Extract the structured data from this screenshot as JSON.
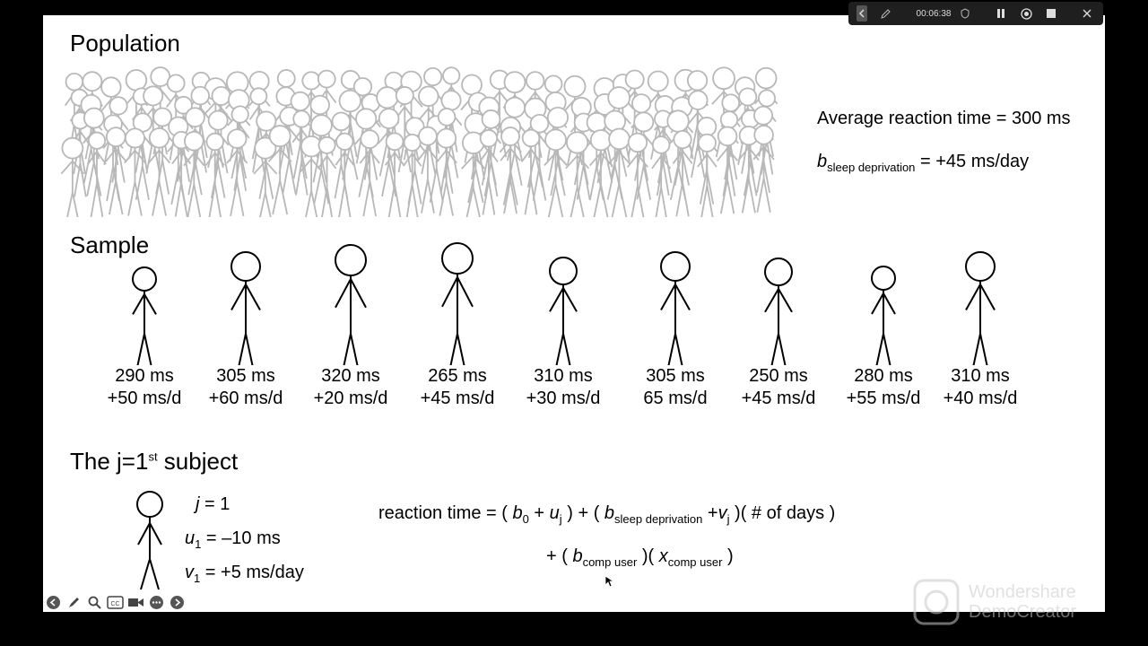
{
  "slide": {
    "population_title": "Population",
    "population_avg": "Average reaction time = 300 ms",
    "population_b_var": "b",
    "population_b_sub": "sleep deprivation",
    "population_b_val": " = +45 ms/day",
    "sample_title": "Sample",
    "sample": [
      {
        "rt": "290 ms",
        "slope": "+50 ms/d"
      },
      {
        "rt": "305 ms",
        "slope": "+60 ms/d"
      },
      {
        "rt": "320 ms",
        "slope": "+20 ms/d"
      },
      {
        "rt": "265 ms",
        "slope": "+45 ms/d"
      },
      {
        "rt": "310 ms",
        "slope": "+30 ms/d"
      },
      {
        "rt": "305 ms",
        "slope": "65 ms/d"
      },
      {
        "rt": "250 ms",
        "slope": "+45 ms/d"
      },
      {
        "rt": "280 ms",
        "slope": "+55 ms/d"
      },
      {
        "rt": "310 ms",
        "slope": "+40 ms/d"
      }
    ],
    "subject_title_pre": "The j=1",
    "subject_title_sup": "st",
    "subject_title_post": " subject",
    "j_line": "j",
    "j_val": " = 1",
    "u_var": "u",
    "u_sub": "1",
    "u_val": " = –10 ms",
    "v_var": "v",
    "v_sub": "1",
    "v_val": " = +5 ms/day",
    "eq": {
      "p1": "reaction time = ( ",
      "b0": "b",
      "b0_sub": "0",
      "p2": " + ",
      "uj": "u",
      "uj_sub": "j",
      "p3": " ) + ( ",
      "bsd": "b",
      "bsd_sub": "sleep deprivation",
      "p4": " +",
      "vj": "v",
      "vj_sub": "j",
      "p5": " )( # of days )",
      "l2a": "+ ( ",
      "bc": "b",
      "bc_sub": "comp user",
      "l2b": " )( ",
      "xc": "x",
      "xc_sub": "comp user",
      "l2c": " )"
    }
  },
  "recorder": {
    "time": "00:06:38"
  },
  "watermark": {
    "line1": "Wondershare",
    "line2": "DemoCreator"
  }
}
